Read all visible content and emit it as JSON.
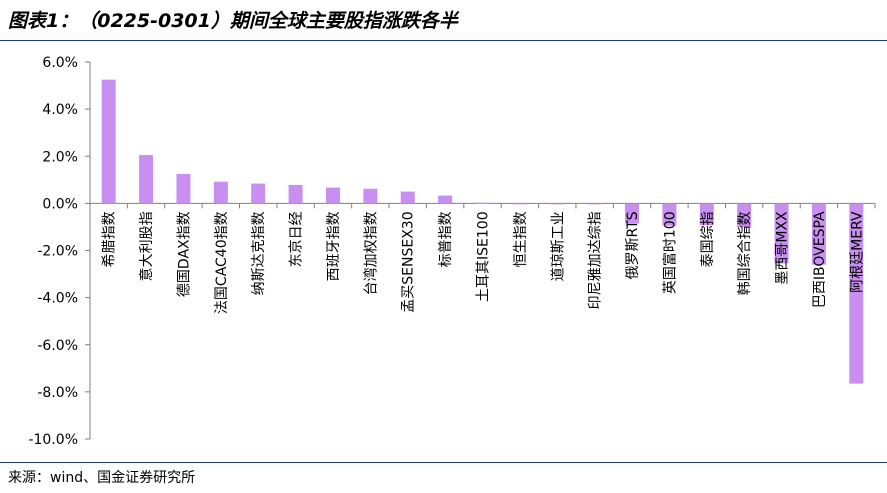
{
  "title": "图表1：（0225-0301）期间全球主要股指涨跌各半",
  "source": "来源：wind、国金证券研究所",
  "colors": {
    "bar": "#c88ff0",
    "axis": "#7f7f7f",
    "rule": "#1f3f7a"
  },
  "chart_data": {
    "type": "bar",
    "title": "",
    "xlabel": "",
    "ylabel": "",
    "ylim": [
      -10,
      6
    ],
    "yticks": [
      6,
      4,
      2,
      0,
      -2,
      -4,
      -6,
      -8,
      -10
    ],
    "ytick_labels": [
      "6.0%",
      "4.0%",
      "2.0%",
      "0.0%",
      "-2.0%",
      "-4.0%",
      "-6.0%",
      "-8.0%",
      "-10.0%"
    ],
    "grid": false,
    "legend": "none",
    "categories": [
      "希腊指数",
      "意大利股指",
      "德国DAX指数",
      "法国CAC40指数",
      "纳斯达克指数",
      "东京日经",
      "西班牙指数",
      "台湾加权指数",
      "孟买SENSEX30",
      "标普指数",
      "土耳其ISE100",
      "恒生指数",
      "道琼斯工业",
      "印尼雅加达综指",
      "俄罗斯RTS",
      "英国富时100",
      "泰国综指",
      "韩国综合指数",
      "墨西哥MXX",
      "巴西IBOVESPA",
      "阿根廷MERV"
    ],
    "values": [
      5.25,
      2.05,
      1.25,
      0.92,
      0.84,
      0.78,
      0.67,
      0.62,
      0.5,
      0.33,
      0.03,
      -0.02,
      -0.02,
      -0.04,
      -0.85,
      -0.95,
      -0.93,
      -1.0,
      -2.55,
      -2.6,
      -7.65
    ]
  }
}
